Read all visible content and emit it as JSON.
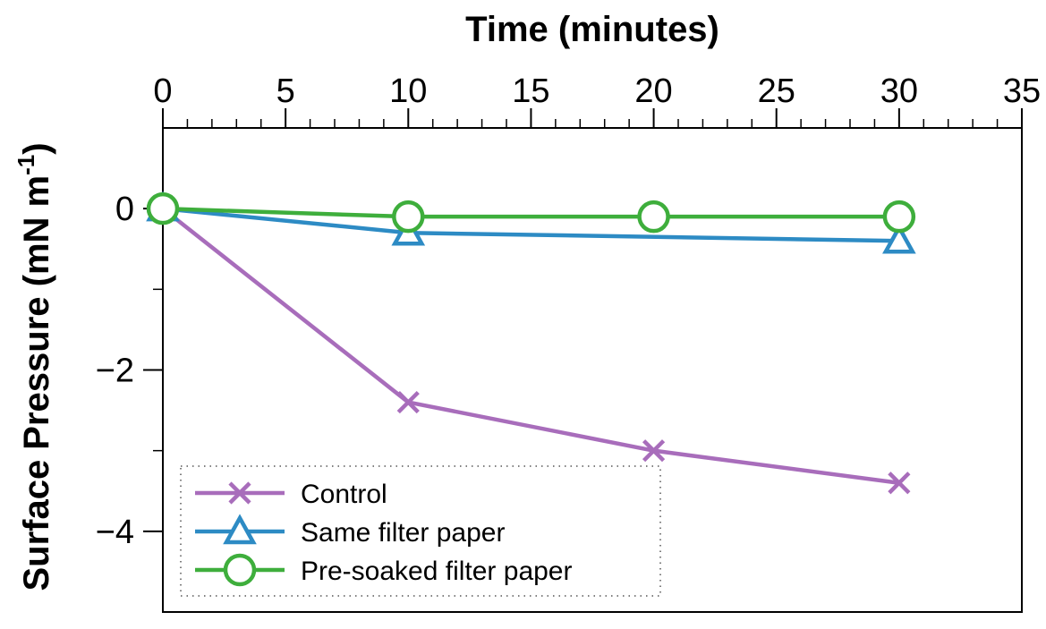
{
  "chart_data": {
    "type": "line",
    "title": "",
    "xlabel": "Time (minutes)",
    "ylabel_main": "Surface Pressure (mN m",
    "ylabel_sup": "-1",
    "ylabel_close": ")",
    "xlim": [
      0,
      35
    ],
    "ylim": [
      -5,
      1
    ],
    "x_major_ticks": [
      0,
      5,
      10,
      15,
      20,
      25,
      30,
      35
    ],
    "x_tick_labels": [
      "0",
      "5",
      "10",
      "15",
      "20",
      "25",
      "30",
      "35"
    ],
    "x_minor_step": 1,
    "y_major_ticks": [
      0,
      -2,
      -4
    ],
    "y_tick_labels": [
      "0",
      "−2",
      "−4"
    ],
    "y_minor_ticks": [
      -1,
      -3
    ],
    "x_axis_position": "top",
    "grid": false,
    "legend_position": "bottom-left",
    "series": [
      {
        "name": "Control",
        "color": "#A86DBB",
        "marker": "x",
        "x": [
          0,
          10,
          20,
          30
        ],
        "y": [
          0,
          -2.4,
          -3.0,
          -3.4
        ]
      },
      {
        "name": "Same filter paper",
        "color": "#2D8BC4",
        "marker": "triangle",
        "x": [
          0,
          10,
          30
        ],
        "y": [
          0,
          -0.3,
          -0.4
        ]
      },
      {
        "name": "Pre-soaked filter paper",
        "color": "#3EAE3C",
        "marker": "circle",
        "x": [
          0,
          10,
          20,
          30
        ],
        "y": [
          0,
          -0.1,
          -0.1,
          -0.1
        ]
      }
    ]
  }
}
